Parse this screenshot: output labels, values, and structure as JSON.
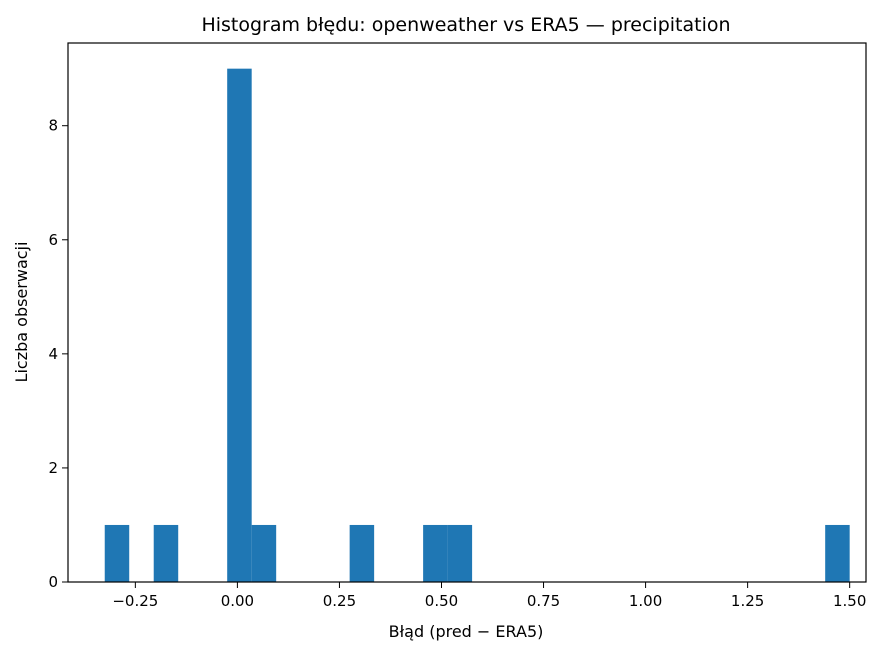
{
  "chart_data": {
    "type": "bar",
    "title": "Histogram błędu: openweather vs ERA5 — precipitation",
    "xlabel": "Błąd (pred − ERA5)",
    "ylabel": "Liczba obserwacji",
    "xlim": [
      -0.415,
      1.54
    ],
    "ylim": [
      0,
      9.45
    ],
    "x_ticks": [
      -0.25,
      0.0,
      0.25,
      0.5,
      0.75,
      1.0,
      1.25,
      1.5
    ],
    "x_tick_labels": [
      "−0.25",
      "0.00",
      "0.25",
      "0.50",
      "0.75",
      "1.00",
      "1.25",
      "1.50"
    ],
    "y_ticks": [
      0,
      2,
      4,
      6,
      8
    ],
    "y_tick_labels": [
      "0",
      "2",
      "4",
      "6",
      "8"
    ],
    "bar_color": "#1f77b4",
    "grid": false,
    "bins": [
      {
        "x0": -0.325,
        "x1": -0.265,
        "count": 1
      },
      {
        "x0": -0.205,
        "x1": -0.145,
        "count": 1
      },
      {
        "x0": -0.025,
        "x1": 0.035,
        "count": 9
      },
      {
        "x0": 0.035,
        "x1": 0.095,
        "count": 1
      },
      {
        "x0": 0.275,
        "x1": 0.335,
        "count": 1
      },
      {
        "x0": 0.455,
        "x1": 0.515,
        "count": 1
      },
      {
        "x0": 0.515,
        "x1": 0.575,
        "count": 1
      },
      {
        "x0": 1.44,
        "x1": 1.5,
        "count": 1
      }
    ]
  }
}
